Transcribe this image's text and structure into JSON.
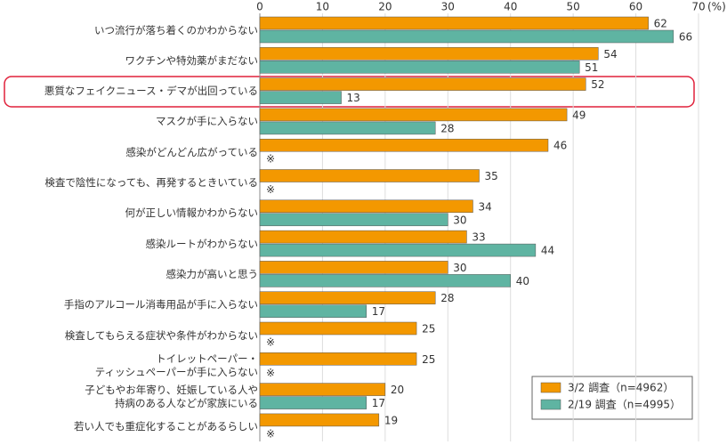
{
  "chart_data": {
    "type": "bar",
    "orientation": "horizontal",
    "categories": [
      "いつ流行が落ち着くのかわからない",
      "ワクチンや特効薬がまだない",
      "悪質なフェイクニュース・デマが出回っている",
      "マスクが手に入らない",
      "感染がどんどん広がっている",
      "検査で陰性になっても、再発するときいている",
      "何が正しい情報かわからない",
      "感染ルートがわからない",
      "感染力が高いと思う",
      "手指のアルコール消毒用品が手に入らない",
      "検査してもらえる症状や条件がわからない",
      "トイレットペーパー・\nティッシュペーパーが手に入らない",
      "子どもやお年寄り、妊娠している人や\n持病のある人などが家族にいる",
      "若い人でも重症化することがあるらしい"
    ],
    "series": [
      {
        "name": "3/2 調査（n=4962）",
        "color": "#f39800",
        "values": [
          62,
          54,
          52,
          49,
          46,
          35,
          34,
          33,
          30,
          28,
          25,
          25,
          20,
          19
        ]
      },
      {
        "name": "2/19 調査（n=4995）",
        "color": "#5fb4a2",
        "values": [
          66,
          51,
          13,
          28,
          null,
          null,
          30,
          44,
          40,
          17,
          null,
          null,
          17,
          null
        ]
      }
    ],
    "note_mark": "※",
    "x_unit": "(%)",
    "xlim": [
      0,
      70
    ],
    "xticks": [
      0,
      10,
      20,
      30,
      40,
      50,
      60,
      70
    ],
    "grid": true
  }
}
